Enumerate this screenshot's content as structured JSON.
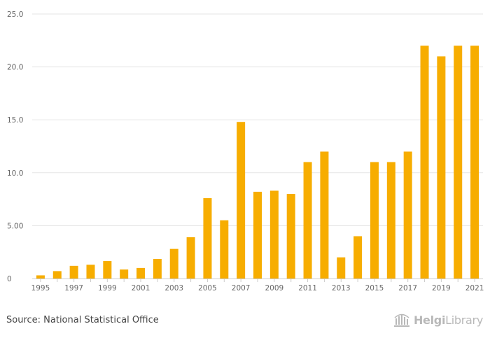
{
  "chart_data": {
    "type": "bar",
    "title": "",
    "xlabel": "",
    "ylabel": "",
    "categories": [
      "1995",
      "1996",
      "1997",
      "1998",
      "1999",
      "2000",
      "2001",
      "2002",
      "2003",
      "2004",
      "2005",
      "2006",
      "2007",
      "2008",
      "2009",
      "2010",
      "2011",
      "2012",
      "2013",
      "2014",
      "2015",
      "2016",
      "2017",
      "2018",
      "2019",
      "2020",
      "2021"
    ],
    "x_tick_labels": [
      "1995",
      "1997",
      "1999",
      "2001",
      "2003",
      "2005",
      "2007",
      "2009",
      "2011",
      "2013",
      "2015",
      "2017",
      "2019",
      "2021"
    ],
    "values": [
      0.3,
      0.7,
      1.2,
      1.3,
      1.65,
      0.85,
      1.0,
      1.85,
      2.8,
      3.9,
      7.6,
      5.5,
      14.8,
      8.2,
      8.3,
      8.0,
      11.0,
      12.0,
      2.0,
      4.0,
      11.0,
      11.0,
      12.0,
      22.0,
      21.0,
      22.0,
      22.0
    ],
    "ylim": [
      0,
      25
    ],
    "y_ticks": [
      0,
      5,
      10,
      15,
      20,
      25
    ],
    "y_tick_labels": [
      "0",
      "5.00",
      "10.0",
      "15.0",
      "20.0",
      "25.0"
    ],
    "grid": true,
    "bar_color": "#f7ad00"
  },
  "footer": {
    "source": "Source: National Statistical Office",
    "logo_part1": "Helgi",
    "logo_part2": "Library"
  },
  "colors": {
    "grid": "#e6e6e6",
    "axis_text": "#666666",
    "logo": "#b8b8b8"
  }
}
